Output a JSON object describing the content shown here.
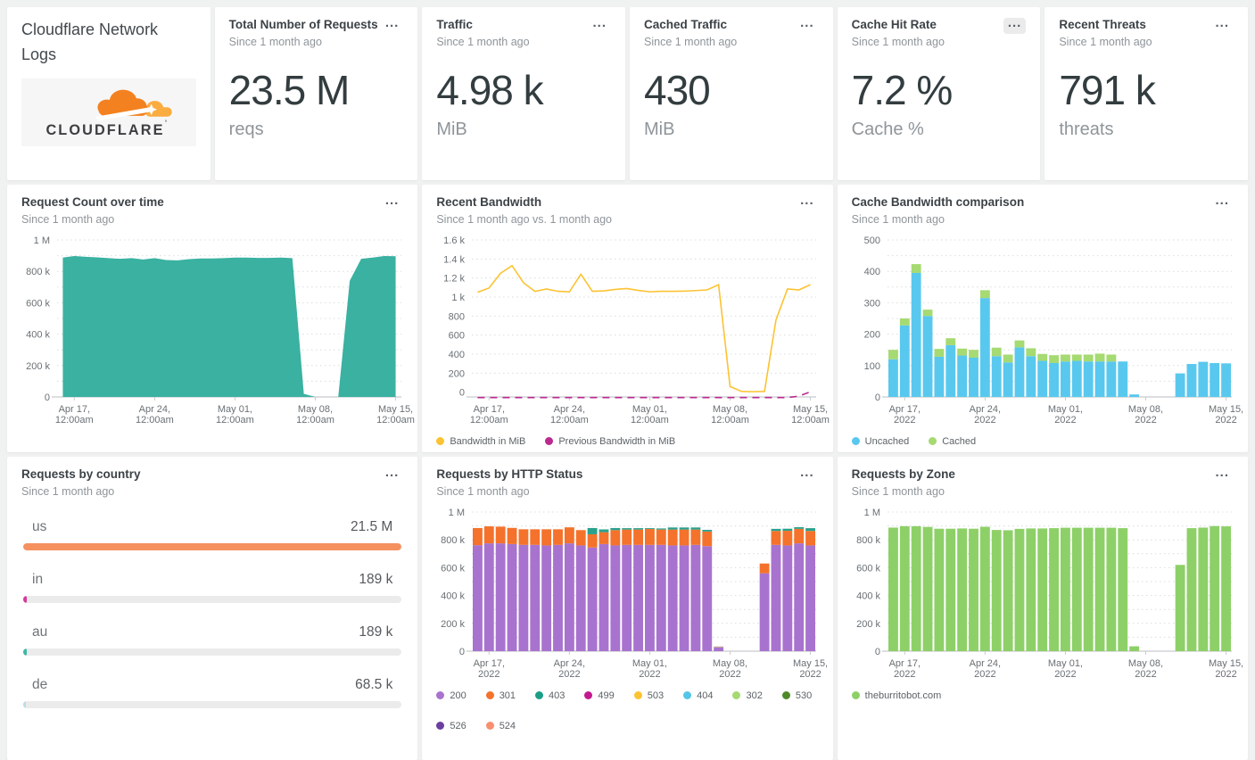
{
  "app": {
    "title": "Cloudflare Network Logs",
    "logo_text": "CLOUDFLARE",
    "logo_tick": "'"
  },
  "ui": {
    "menu_glyph": "..."
  },
  "stat_cards": [
    {
      "title": "Total Number of Requests",
      "subtitle": "Since 1 month ago",
      "value": "23.5 M",
      "unit": "reqs"
    },
    {
      "title": "Traffic",
      "subtitle": "Since 1 month ago",
      "value": "4.98 k",
      "unit": "MiB"
    },
    {
      "title": "Cached Traffic",
      "subtitle": "Since 1 month ago",
      "value": "430",
      "unit": "MiB"
    },
    {
      "title": "Cache Hit Rate",
      "subtitle": "Since 1 month ago",
      "value": "7.2 %",
      "unit": "Cache %"
    },
    {
      "title": "Recent Threats",
      "subtitle": "Since 1 month ago",
      "value": "791 k",
      "unit": "threats"
    }
  ],
  "chart_data": [
    {
      "id": "request-count",
      "type": "area",
      "title": "Request Count over time",
      "subtitle": "Since 1 month ago",
      "n": 30,
      "ymin": 0,
      "ymax": 1000000,
      "yticks": [
        {
          "v": 0,
          "label": "0"
        },
        {
          "v": 200000,
          "label": "200 k"
        },
        {
          "v": 400000,
          "label": "400 k"
        },
        {
          "v": 600000,
          "label": "600 k"
        },
        {
          "v": 800000,
          "label": "800 k"
        },
        {
          "v": 1000000,
          "label": "1 M"
        }
      ],
      "xticks": [
        {
          "i": 1,
          "lines": [
            "Apr 17,",
            "12:00am"
          ]
        },
        {
          "i": 8,
          "lines": [
            "Apr 24,",
            "12:00am"
          ]
        },
        {
          "i": 15,
          "lines": [
            "May 01,",
            "12:00am"
          ]
        },
        {
          "i": 22,
          "lines": [
            "May 08,",
            "12:00am"
          ]
        },
        {
          "i": 29,
          "lines": [
            "May 15,",
            "12:00am"
          ]
        }
      ],
      "series": [
        {
          "name": "Requests",
          "color": "#3ab1a1",
          "values": [
            888000,
            898000,
            893000,
            889000,
            884000,
            880000,
            884000,
            876000,
            884000,
            872000,
            870000,
            878000,
            882000,
            882000,
            884000,
            888000,
            888000,
            886000,
            886000,
            888000,
            884000,
            20000,
            0,
            0,
            0,
            740000,
            880000,
            888000,
            898000,
            896000
          ]
        }
      ]
    },
    {
      "id": "recent-bandwidth",
      "type": "line",
      "title": "Recent Bandwidth",
      "subtitle": "Since 1 month ago vs. 1 month ago",
      "n": 30,
      "ymin": -50,
      "ymax": 1600,
      "yticks": [
        {
          "v": 0,
          "label": "0"
        },
        {
          "v": 200,
          "label": "200"
        },
        {
          "v": 400,
          "label": "400"
        },
        {
          "v": 600,
          "label": "600"
        },
        {
          "v": 800,
          "label": "800"
        },
        {
          "v": 1000,
          "label": "1 k"
        },
        {
          "v": 1200,
          "label": "1.2 k"
        },
        {
          "v": 1400,
          "label": "1.4 k"
        },
        {
          "v": 1600,
          "label": "1.6 k"
        }
      ],
      "xticks": [
        {
          "i": 1,
          "lines": [
            "Apr 17,",
            "12:00am"
          ]
        },
        {
          "i": 8,
          "lines": [
            "Apr 24,",
            "12:00am"
          ]
        },
        {
          "i": 15,
          "lines": [
            "May 01,",
            "12:00am"
          ]
        },
        {
          "i": 22,
          "lines": [
            "May 08,",
            "12:00am"
          ]
        },
        {
          "i": 29,
          "lines": [
            "May 15,",
            "12:00am"
          ]
        }
      ],
      "series": [
        {
          "name": "Bandwidth in MiB",
          "color": "#fcc332",
          "dashed": false,
          "values": [
            1050,
            1095,
            1250,
            1330,
            1150,
            1060,
            1085,
            1060,
            1055,
            1240,
            1060,
            1065,
            1080,
            1090,
            1070,
            1055,
            1060,
            1060,
            1062,
            1068,
            1075,
            1130,
            60,
            8,
            5,
            8,
            760,
            1085,
            1075,
            1130
          ]
        },
        {
          "name": "Previous Bandwidth in MiB",
          "color": "#bb2a8f",
          "dashed": true,
          "values": [
            0,
            0,
            0,
            0,
            0,
            0,
            0,
            0,
            0,
            0,
            0,
            0,
            0,
            0,
            0,
            0,
            0,
            0,
            0,
            0,
            0,
            0,
            0,
            0,
            0,
            0,
            0,
            0,
            15,
            60
          ]
        }
      ],
      "legend": [
        {
          "label": "Bandwidth in MiB",
          "color": "#fcc332"
        },
        {
          "label": "Previous Bandwidth in MiB",
          "color": "#bb2a8f"
        }
      ]
    },
    {
      "id": "cache-bandwidth-comparison",
      "type": "bar",
      "title": "Cache Bandwidth comparison",
      "subtitle": "Since 1 month ago",
      "n": 30,
      "ymin": 0,
      "ymax": 500,
      "yticks": [
        {
          "v": 0,
          "label": "0"
        },
        {
          "v": 100,
          "label": "100"
        },
        {
          "v": 200,
          "label": "200"
        },
        {
          "v": 300,
          "label": "300"
        },
        {
          "v": 400,
          "label": "400"
        },
        {
          "v": 500,
          "label": "500"
        }
      ],
      "xticks": [
        {
          "i": 1,
          "lines": [
            "Apr 17,",
            "2022"
          ]
        },
        {
          "i": 8,
          "lines": [
            "Apr 24,",
            "2022"
          ]
        },
        {
          "i": 15,
          "lines": [
            "May 01,",
            "2022"
          ]
        },
        {
          "i": 22,
          "lines": [
            "May 08,",
            "2022"
          ]
        },
        {
          "i": 29,
          "lines": [
            "May 15,",
            "2022"
          ]
        }
      ],
      "series": [
        {
          "name": "Uncached",
          "color": "#59c8ef",
          "values": [
            120,
            228,
            395,
            258,
            128,
            165,
            132,
            125,
            315,
            130,
            110,
            158,
            130,
            115,
            108,
            113,
            115,
            113,
            113,
            113,
            113,
            8,
            0,
            0,
            0,
            75,
            105,
            112,
            108,
            107
          ]
        },
        {
          "name": "Cached",
          "color": "#a6da72",
          "values": [
            30,
            22,
            28,
            20,
            25,
            22,
            22,
            25,
            25,
            27,
            25,
            22,
            25,
            22,
            25,
            22,
            20,
            22,
            25,
            22,
            0,
            0,
            0,
            0,
            0,
            0,
            0,
            0,
            0,
            0
          ]
        }
      ],
      "legend": [
        {
          "label": "Uncached",
          "color": "#59c8ef"
        },
        {
          "label": "Cached",
          "color": "#a6da72"
        }
      ]
    },
    {
      "id": "requests-by-country",
      "type": "hbar",
      "title": "Requests by country",
      "subtitle": "Since 1 month ago",
      "rows": [
        {
          "label": "us",
          "value": "21.5 M",
          "pct": 100,
          "color": "#f5915f"
        },
        {
          "label": "in",
          "value": "189 k",
          "pct": 1.0,
          "color": "#d6399b"
        },
        {
          "label": "au",
          "value": "189 k",
          "pct": 1.0,
          "color": "#3db9a6"
        },
        {
          "label": "de",
          "value": "68.5 k",
          "pct": 0.5,
          "color": "#b8dcea"
        }
      ]
    },
    {
      "id": "requests-by-http-status",
      "type": "bar",
      "title": "Requests by HTTP Status",
      "subtitle": "Since 1 month ago",
      "n": 30,
      "ymin": 0,
      "ymax": 1000000,
      "yticks": [
        {
          "v": 0,
          "label": "0"
        },
        {
          "v": 200000,
          "label": "200 k"
        },
        {
          "v": 400000,
          "label": "400 k"
        },
        {
          "v": 600000,
          "label": "600 k"
        },
        {
          "v": 800000,
          "label": "800 k"
        },
        {
          "v": 1000000,
          "label": "1 M"
        }
      ],
      "xticks": [
        {
          "i": 1,
          "lines": [
            "Apr 17,",
            "2022"
          ]
        },
        {
          "i": 8,
          "lines": [
            "Apr 24,",
            "2022"
          ]
        },
        {
          "i": 15,
          "lines": [
            "May 01,",
            "2022"
          ]
        },
        {
          "i": 22,
          "lines": [
            "May 08,",
            "2022"
          ]
        },
        {
          "i": 29,
          "lines": [
            "May 15,",
            "2022"
          ]
        }
      ],
      "series": [
        {
          "name": "200",
          "color": "#a873ce",
          "values": [
            762000,
            775000,
            775000,
            770000,
            764000,
            764000,
            760000,
            764000,
            775000,
            760000,
            745000,
            770000,
            760000,
            764000,
            764000,
            764000,
            764000,
            760000,
            760000,
            764000,
            755000,
            28000,
            0,
            0,
            0,
            560000,
            764000,
            760000,
            775000,
            760000
          ]
        },
        {
          "name": "301",
          "color": "#f4722b",
          "values": [
            123000,
            122000,
            120000,
            116000,
            112000,
            112000,
            116000,
            112000,
            115000,
            110000,
            95000,
            85000,
            110000,
            110000,
            110000,
            114000,
            110000,
            114000,
            114000,
            110000,
            105000,
            0,
            0,
            0,
            0,
            70000,
            100000,
            105000,
            104000,
            104000
          ]
        },
        {
          "name": "403",
          "color": "#2aa18c",
          "values": [
            0,
            0,
            0,
            0,
            0,
            0,
            0,
            0,
            0,
            0,
            45000,
            20000,
            15000,
            10000,
            10000,
            6000,
            8000,
            15000,
            15000,
            15000,
            12000,
            0,
            0,
            0,
            0,
            0,
            15000,
            15000,
            12000,
            20000
          ]
        },
        {
          "name": "503",
          "color": "#c5ad82",
          "values": [
            0,
            0,
            0,
            0,
            0,
            0,
            0,
            0,
            0,
            0,
            0,
            0,
            0,
            0,
            0,
            0,
            0,
            0,
            0,
            0,
            0,
            6000,
            0,
            0,
            0,
            0,
            0,
            0,
            0,
            0
          ]
        }
      ],
      "legend": [
        {
          "label": "200",
          "color": "#a873ce"
        },
        {
          "label": "301",
          "color": "#f4722b"
        },
        {
          "label": "403",
          "color": "#1b9e87"
        },
        {
          "label": "499",
          "color": "#c21a8e"
        },
        {
          "label": "503",
          "color": "#fcc332"
        },
        {
          "label": "404",
          "color": "#54c6e8"
        },
        {
          "label": "302",
          "color": "#a6da72"
        },
        {
          "label": "530",
          "color": "#4f8a28"
        },
        {
          "label": "526",
          "color": "#6b3fa0"
        },
        {
          "label": "524",
          "color": "#f88f6f"
        }
      ]
    },
    {
      "id": "requests-by-zone",
      "type": "bar",
      "title": "Requests by Zone",
      "subtitle": "Since 1 month ago",
      "n": 30,
      "ymin": 0,
      "ymax": 1000000,
      "yticks": [
        {
          "v": 0,
          "label": "0"
        },
        {
          "v": 200000,
          "label": "200 k"
        },
        {
          "v": 400000,
          "label": "400 k"
        },
        {
          "v": 600000,
          "label": "600 k"
        },
        {
          "v": 800000,
          "label": "800 k"
        },
        {
          "v": 1000000,
          "label": "1 M"
        }
      ],
      "xticks": [
        {
          "i": 1,
          "lines": [
            "Apr 17,",
            "2022"
          ]
        },
        {
          "i": 8,
          "lines": [
            "Apr 24,",
            "2022"
          ]
        },
        {
          "i": 15,
          "lines": [
            "May 01,",
            "2022"
          ]
        },
        {
          "i": 22,
          "lines": [
            "May 08,",
            "2022"
          ]
        },
        {
          "i": 29,
          "lines": [
            "May 15,",
            "2022"
          ]
        }
      ],
      "series": [
        {
          "name": "theburritobot.com",
          "color": "#8ed068",
          "values": [
            888000,
            898000,
            898000,
            893000,
            880000,
            880000,
            882000,
            880000,
            894000,
            871000,
            869000,
            879000,
            882000,
            882000,
            884000,
            887000,
            887000,
            887000,
            887000,
            887000,
            884000,
            35000,
            0,
            0,
            0,
            620000,
            884000,
            888000,
            899000,
            897000
          ]
        }
      ],
      "legend": [
        {
          "label": "theburritobot.com",
          "color": "#8ed068"
        }
      ]
    }
  ]
}
